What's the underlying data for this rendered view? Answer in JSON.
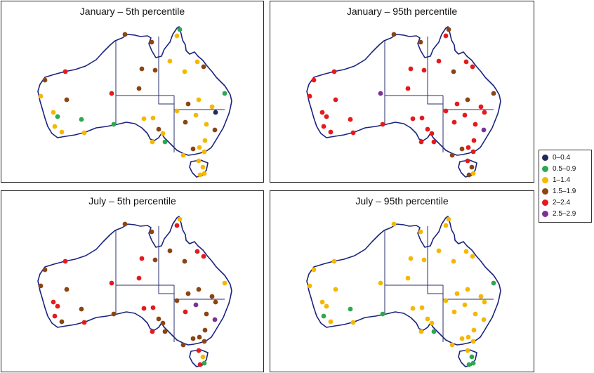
{
  "legend": [
    {
      "label": "0–0.4",
      "color": "#1f2a5a"
    },
    {
      "label": "0.5–0.9",
      "color": "#2ea84f"
    },
    {
      "label": "1–1.4",
      "color": "#f5b800"
    },
    {
      "label": "1.5–1.9",
      "color": "#8b4513"
    },
    {
      "label": "2–2.4",
      "color": "#e41a1c"
    },
    {
      "label": "2.5–2.9",
      "color": "#7b3294"
    }
  ],
  "panels": [
    {
      "title": "January – 5th percentile"
    },
    {
      "title": "January – 95th percentile"
    },
    {
      "title": "July – 5th percentile"
    },
    {
      "title": "July – 95th percentile"
    }
  ],
  "map_style": {
    "coast_color": "#1a237e",
    "border_color": "#2a2f6e"
  },
  "station_classes": [
    [
      3,
      3,
      2,
      1,
      2,
      3,
      2,
      2,
      3,
      2,
      1,
      4,
      4,
      3,
      2,
      3,
      2,
      1,
      2,
      2,
      1,
      2,
      1,
      3,
      3,
      2,
      2,
      2,
      3,
      2,
      1,
      2,
      3,
      3,
      2,
      2,
      2,
      0,
      3,
      2,
      2,
      2,
      3,
      2,
      2,
      2,
      2,
      2
    ],
    [
      3,
      3,
      4,
      3,
      4,
      4,
      3,
      4,
      4,
      3,
      3,
      5,
      4,
      4,
      4,
      4,
      4,
      4,
      4,
      4,
      4,
      4,
      4,
      4,
      4,
      4,
      4,
      4,
      4,
      4,
      4,
      4,
      4,
      4,
      4,
      4,
      4,
      4,
      5,
      4,
      4,
      4,
      3,
      3,
      4,
      3,
      2,
      3
    ],
    [
      3,
      3,
      4,
      2,
      3,
      3,
      3,
      4,
      4,
      3,
      2,
      4,
      4,
      3,
      3,
      3,
      4,
      4,
      4,
      3,
      3,
      4,
      3,
      4,
      4,
      4,
      4,
      4,
      3,
      3,
      3,
      3,
      3,
      4,
      5,
      3,
      3,
      3,
      5,
      3,
      3,
      3,
      3,
      3,
      4,
      2,
      1,
      4
    ],
    [
      2,
      2,
      2,
      2,
      2,
      2,
      2,
      2,
      2,
      2,
      1,
      2,
      2,
      2,
      2,
      2,
      2,
      2,
      1,
      2,
      1,
      2,
      1,
      2,
      2,
      2,
      2,
      2,
      2,
      2,
      1,
      2,
      2,
      2,
      2,
      2,
      2,
      2,
      2,
      2,
      2,
      2,
      2,
      2,
      2,
      1,
      1,
      1
    ]
  ]
}
